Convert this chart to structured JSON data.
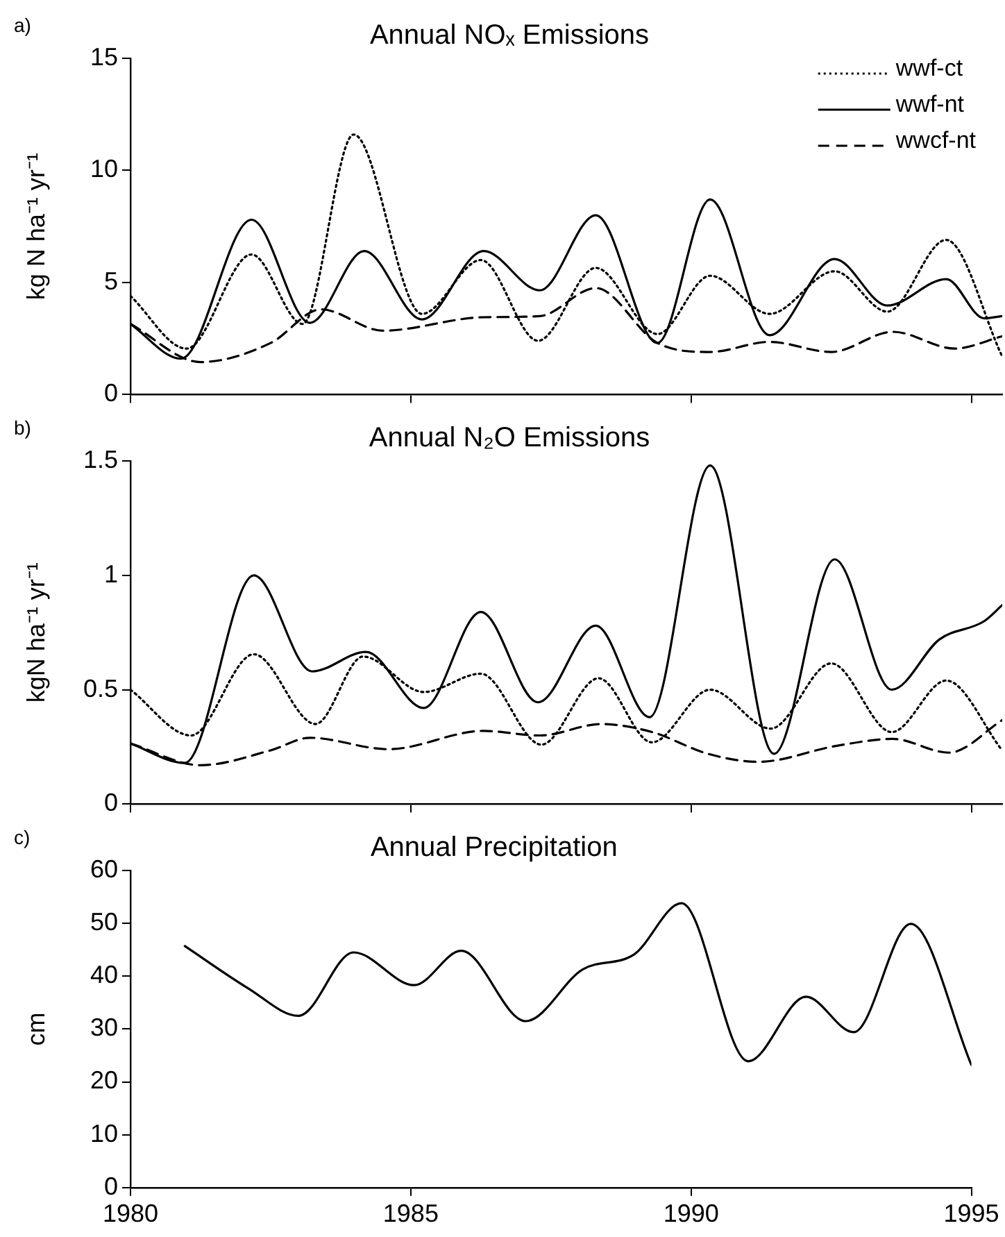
{
  "chart_data": [
    {
      "type": "line",
      "title": "Annual NOₓ Emissions",
      "ylabel": "kg N ha⁻¹ yr⁻¹",
      "annotations": [
        "a)"
      ],
      "xlim": [
        1980,
        1995.55
      ],
      "xticks": [
        1980,
        1985,
        1990,
        1995
      ],
      "ylim": [
        0,
        15
      ],
      "yticks": [
        0,
        5,
        10,
        15
      ],
      "tick_labels": "y",
      "grid": false,
      "legend": "top right",
      "marker": "none",
      "series": [
        {
          "name": "wwf-ct",
          "color": "#000000",
          "line_style": "dotted",
          "x": [
            1980,
            1981.0,
            1982.16,
            1983.07,
            1983.98,
            1985.2,
            1986.25,
            1987.27,
            1988.3,
            1989.4,
            1990.34,
            1991.4,
            1992.56,
            1993.5,
            1994.55,
            1995.55
          ],
          "values": [
            4.4,
            2.05,
            6.25,
            3.15,
            11.6,
            3.6,
            6.0,
            2.4,
            5.65,
            2.7,
            5.3,
            3.6,
            5.5,
            3.7,
            6.9,
            1.7
          ]
        },
        {
          "name": "wwf-nt",
          "color": "#000000",
          "line_style": "solid",
          "x": [
            1980,
            1980.9,
            1982.16,
            1983.2,
            1984.17,
            1985.2,
            1986.3,
            1987.3,
            1988.3,
            1989.4,
            1990.34,
            1991.4,
            1992.56,
            1993.5,
            1994.55,
            1995.23,
            1995.55
          ],
          "values": [
            3.15,
            1.6,
            7.8,
            3.2,
            6.4,
            3.35,
            6.4,
            4.65,
            8.0,
            2.3,
            8.7,
            2.65,
            6.05,
            3.97,
            5.15,
            3.4,
            3.5
          ]
        },
        {
          "name": "wwcf-nt",
          "color": "#000000",
          "line_style": "dashed",
          "x": [
            1980,
            1981.25,
            1982.5,
            1983.4,
            1984.5,
            1986.3,
            1987.3,
            1988.3,
            1989.4,
            1990.34,
            1991.4,
            1992.5,
            1993.6,
            1994.7,
            1995.55
          ],
          "values": [
            3.15,
            1.45,
            2.3,
            3.8,
            2.85,
            3.45,
            3.5,
            4.75,
            2.3,
            1.9,
            2.35,
            1.9,
            2.8,
            2.05,
            2.6
          ]
        }
      ]
    },
    {
      "type": "line",
      "title": "Annual N₂O Emissions",
      "ylabel": "kgN ha⁻¹ yr⁻¹",
      "annotations": [
        "b)"
      ],
      "xlim": [
        1980,
        1995.55
      ],
      "xticks": [
        1980,
        1985,
        1990,
        1995
      ],
      "ylim": [
        0,
        1.5
      ],
      "yticks": [
        0,
        0.5,
        1,
        1.5
      ],
      "tick_labels": "y",
      "grid": false,
      "marker": "none",
      "series": [
        {
          "color": "#000000",
          "line_style": "dotted",
          "x": [
            1980,
            1981.08,
            1982.2,
            1983.3,
            1984.15,
            1985.23,
            1986.25,
            1987.33,
            1988.35,
            1989.3,
            1990.34,
            1991.42,
            1992.5,
            1993.58,
            1994.55,
            1995.55
          ],
          "values": [
            0.5,
            0.3,
            0.655,
            0.35,
            0.645,
            0.49,
            0.57,
            0.26,
            0.55,
            0.27,
            0.5,
            0.33,
            0.615,
            0.315,
            0.54,
            0.235
          ]
        },
        {
          "color": "#000000",
          "line_style": "solid",
          "x": [
            1980,
            1980.97,
            1982.2,
            1983.24,
            1984.2,
            1985.23,
            1986.25,
            1987.27,
            1988.3,
            1989.26,
            1990.34,
            1991.48,
            1992.56,
            1993.58,
            1994.43,
            1995.23,
            1995.55
          ],
          "values": [
            0.265,
            0.18,
            1.0,
            0.58,
            0.665,
            0.42,
            0.84,
            0.445,
            0.78,
            0.38,
            1.48,
            0.22,
            1.07,
            0.5,
            0.72,
            0.8,
            0.87
          ]
        },
        {
          "color": "#000000",
          "line_style": "dashed",
          "x": [
            1980,
            1981.25,
            1982.5,
            1983.2,
            1984.6,
            1986.3,
            1987.3,
            1988.4,
            1989.3,
            1990.3,
            1991.2,
            1992.6,
            1993.6,
            1994.6,
            1995.55
          ],
          "values": [
            0.265,
            0.17,
            0.235,
            0.29,
            0.24,
            0.32,
            0.3,
            0.35,
            0.315,
            0.22,
            0.185,
            0.255,
            0.285,
            0.225,
            0.367
          ]
        }
      ]
    },
    {
      "type": "line",
      "title": "Annual Precipitation",
      "ylabel": "cm",
      "annotations": [
        "c)"
      ],
      "xlim": [
        1980,
        1995
      ],
      "xticks": [
        1980,
        1985,
        1990,
        1995
      ],
      "ylim": [
        0,
        60
      ],
      "yticks": [
        0,
        10,
        20,
        30,
        40,
        50,
        60
      ],
      "grid": false,
      "marker": "none",
      "series": [
        {
          "color": "#000000",
          "line_style": "solid",
          "x": [
            1980.97,
            1982.1,
            1983.0,
            1983.98,
            1985.06,
            1985.9,
            1987.05,
            1988.07,
            1988.98,
            1989.83,
            1991.02,
            1992.05,
            1992.9,
            1993.92,
            1995
          ],
          "values": [
            45.7,
            37.7,
            32.5,
            44.5,
            38.3,
            44.8,
            31.5,
            41.3,
            44.1,
            53.8,
            23.9,
            36.1,
            29.4,
            49.9,
            23.2
          ]
        }
      ]
    }
  ]
}
